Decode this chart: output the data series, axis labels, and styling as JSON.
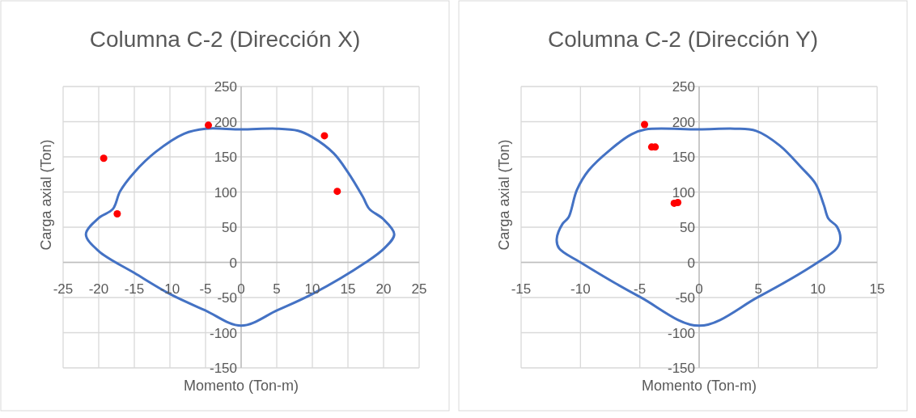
{
  "chart_data": [
    {
      "type": "scatter",
      "title": "Columna C-2 (Dirección X)",
      "xlabel": "Momento (Ton-m)",
      "ylabel": "Carga axial (Ton)",
      "xlim": [
        -25,
        25
      ],
      "ylim": [
        -150,
        250
      ],
      "xticks": [
        -25,
        -20,
        -15,
        -10,
        -5,
        0,
        5,
        10,
        15,
        20,
        25
      ],
      "yticks": [
        -150,
        -100,
        -50,
        0,
        50,
        100,
        150,
        200,
        250
      ],
      "grid": true,
      "series": [
        {
          "marker": "circle",
          "color": "#ff0000",
          "x": [
            -4.6,
            -19.3,
            -17.4,
            11.7,
            13.5
          ],
          "values": [
            195,
            148,
            69,
            180,
            101
          ]
        }
      ]
    },
    {
      "type": "scatter",
      "title": "Columna C-2 (Dirección Y)",
      "xlabel": "Momento (Ton-m)",
      "ylabel": "Carga axial (Ton)",
      "xlim": [
        -15,
        15
      ],
      "ylim": [
        -150,
        250
      ],
      "xticks": [
        -15,
        -10,
        -5,
        0,
        5,
        10,
        15
      ],
      "yticks": [
        -150,
        -100,
        -50,
        0,
        50,
        100,
        150,
        200,
        250
      ],
      "grid": true,
      "series": [
        {
          "marker": "circle",
          "color": "#ff0000",
          "x": [
            -4.6,
            -4.0,
            -3.7,
            -2.1,
            -1.8
          ],
          "values": [
            196,
            164,
            164,
            84,
            85
          ]
        }
      ]
    }
  ]
}
